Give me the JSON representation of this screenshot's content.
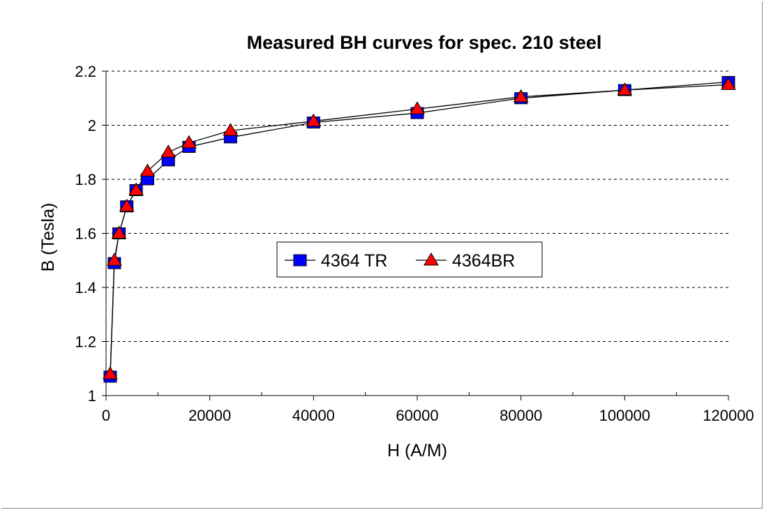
{
  "chart_data": {
    "type": "line",
    "title": "Measured BH curves for spec. 210 steel",
    "xlabel": "H (A/M)",
    "ylabel": "B (Tesla)",
    "xlim": [
      0,
      120000
    ],
    "ylim": [
      1,
      2.2
    ],
    "x_ticks": [
      0,
      20000,
      40000,
      60000,
      80000,
      100000,
      120000
    ],
    "x_tick_labels": [
      "0",
      "20000",
      "40000",
      "60000",
      "80000",
      "100000",
      "120000"
    ],
    "y_ticks": [
      1,
      1.2,
      1.4,
      1.6,
      1.8,
      2,
      2.2
    ],
    "y_tick_labels": [
      "1",
      "1.2",
      "1.4",
      "1.6",
      "1.8",
      "2",
      "2.2"
    ],
    "grid": "horizontal dashed",
    "legend_position": "center",
    "series": [
      {
        "name": "4364 TR",
        "marker": "square",
        "color": "#0000ff",
        "x": [
          800,
          1600,
          2500,
          4000,
          5800,
          8000,
          12000,
          16000,
          24000,
          40000,
          60000,
          80000,
          100000,
          120000
        ],
        "y": [
          1.07,
          1.49,
          1.6,
          1.7,
          1.76,
          1.8,
          1.87,
          1.92,
          1.955,
          2.01,
          2.045,
          2.1,
          2.13,
          2.16
        ]
      },
      {
        "name": "4364BR",
        "marker": "triangle",
        "color": "#ff0000",
        "x": [
          800,
          1600,
          2500,
          4000,
          5800,
          8000,
          12000,
          16000,
          24000,
          40000,
          60000,
          80000,
          100000,
          120000
        ],
        "y": [
          1.08,
          1.5,
          1.6,
          1.7,
          1.76,
          1.83,
          1.9,
          1.935,
          1.98,
          2.015,
          2.06,
          2.105,
          2.13,
          2.15
        ]
      }
    ]
  }
}
